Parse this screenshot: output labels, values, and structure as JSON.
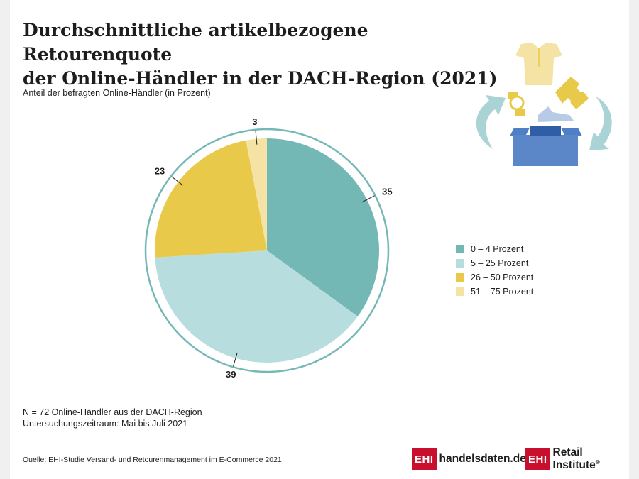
{
  "title_lines": [
    "Durchschnittliche artikelbezogene Retourenquote",
    "der Online-Händler in der DACH-Region (2021)"
  ],
  "subtitle": "Anteil der befragten Online-Händler (in Prozent)",
  "chart_data": {
    "type": "pie",
    "categories": [
      "0 – 4 Prozent",
      "5 – 25 Prozent",
      "26 – 50 Prozent",
      "51 – 75 Prozent"
    ],
    "values": [
      35,
      39,
      23,
      3
    ],
    "colors": [
      "#74b8b6",
      "#b8ddde",
      "#e9c94a",
      "#f4e3a4"
    ],
    "start": "12 o'clock",
    "direction": "clockwise",
    "legend_position": "right"
  },
  "notes": [
    "N = 72 Online-Händler aus der DACH-Region",
    "Untersuchungszeitraum: Mai bis Juli 2021"
  ],
  "source": "Quelle: EHI-Studie Versand- und Retourenmanagement im E-Commerce 2021",
  "logos": {
    "handelsdaten_box": "EHI",
    "handelsdaten_text": "handelsdaten.de",
    "retail_box": "EHI",
    "retail_text": "Retail Institute",
    "retail_mark": "®"
  },
  "illustration": [
    "shirt-icon",
    "watch-icon",
    "drill-icon",
    "shoe-icon",
    "box-icon",
    "return-arrow-icon"
  ]
}
